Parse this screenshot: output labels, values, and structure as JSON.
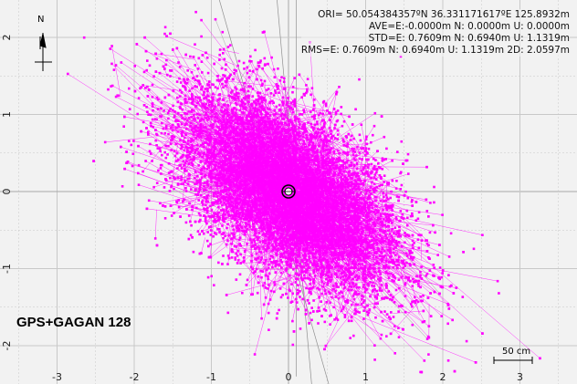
{
  "chart_data": {
    "type": "scatter",
    "title": "",
    "xlabel": "",
    "ylabel": "",
    "xlim": [
      -3.7,
      3.7
    ],
    "ylim": [
      -2.4,
      2.4
    ],
    "x_ticks": [
      -3,
      -2,
      -1,
      0,
      1,
      2,
      3
    ],
    "y_ticks": [
      -2,
      -1,
      0,
      1,
      2
    ],
    "grid": true,
    "point_color": "#ff00ff",
    "point_count": 9000,
    "std_east_m": 0.7609,
    "std_north_m": 0.694,
    "correlation_en": -0.55,
    "origin_marker": [
      0,
      0
    ]
  },
  "stats": {
    "ori": "ORI= 50.054384357ºN  36.331171617ºE 125.8932m",
    "ave": "AVE=E:-0.0000m N: 0.0000m U: 0.0000m",
    "std": "STD=E: 0.7609m N: 0.6940m U: 1.1319m",
    "rms": "RMS=E: 0.7609m N: 0.6940m U: 1.1319m 2D: 2.0597m"
  },
  "solution_label": "GPS+GAGAN 128",
  "compass": {
    "label": "N",
    "icon": "north-arrow-icon"
  },
  "scale_bar": {
    "label": "50 cm"
  },
  "colors": {
    "background": "#f2f2f2",
    "grid": "#c8c8c8",
    "points": "#ff00ff",
    "tracks": "#a0a0a0"
  }
}
